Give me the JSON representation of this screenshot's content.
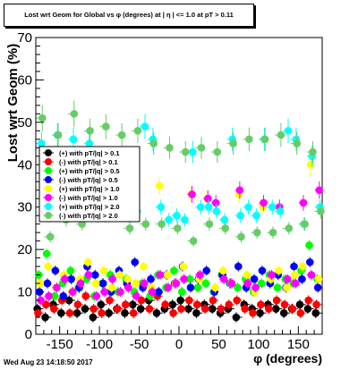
{
  "header": {
    "title": "Lost wrt Geom for Global vs φ (degrees) at | η | <= 1.0 at pT > 0.11"
  },
  "footer": {
    "timestamp": "Wed Aug 23 14:18:50 2017"
  },
  "chart_data": {
    "type": "scatter",
    "title": "Lost wrt Geom for Global vs φ (degrees) at | η | <= 1.0 at pT > 0.11",
    "xlabel": "φ (degrees)",
    "ylabel": "Lost wrt Geom (%)",
    "xlim": [
      -180,
      180
    ],
    "ylim": [
      0,
      70
    ],
    "x_ticks": [
      -150,
      -100,
      -50,
      0,
      50,
      100,
      150
    ],
    "y_ticks": [
      0,
      10,
      20,
      30,
      40,
      50,
      60,
      70
    ],
    "grid": false,
    "legend_position": "top-left",
    "error_bars": true,
    "x": [
      -175,
      -165,
      -155,
      -145,
      -135,
      -125,
      -115,
      -105,
      -95,
      -85,
      -75,
      -65,
      -55,
      -45,
      -35,
      -25,
      -15,
      -5,
      5,
      15,
      25,
      35,
      45,
      55,
      65,
      75,
      85,
      95,
      105,
      115,
      125,
      135,
      145,
      155,
      165,
      175
    ],
    "series": [
      {
        "name": "(+) with pT/|q| > 0.1",
        "color": "#000000",
        "values": [
          6,
          4,
          7,
          5,
          8,
          5,
          6,
          4,
          7,
          5,
          6,
          5,
          7,
          6,
          8,
          5,
          6,
          7,
          8,
          6,
          5,
          7,
          6,
          5,
          6,
          4,
          7,
          6,
          5,
          7,
          6,
          5,
          6,
          7,
          6,
          5
        ]
      },
      {
        "name": "(-) with pT/|q| > 0.1",
        "color": "#ff0000",
        "values": [
          5,
          7,
          6,
          8,
          5,
          7,
          9,
          6,
          5,
          8,
          6,
          7,
          5,
          8,
          6,
          9,
          7,
          5,
          6,
          8,
          7,
          6,
          8,
          6,
          7,
          8,
          6,
          5,
          7,
          6,
          8,
          7,
          6,
          5,
          8,
          7
        ]
      },
      {
        "name": "(+) with pT/|q| > 0.5",
        "color": "#00ff00",
        "values": [
          14,
          19,
          9,
          12,
          15,
          11,
          13,
          9,
          12,
          14,
          10,
          13,
          10,
          12,
          9,
          14,
          11,
          15,
          10,
          13,
          11,
          12,
          10,
          14,
          12,
          11,
          13,
          10,
          12,
          14,
          11,
          13,
          12,
          15,
          21,
          13
        ]
      },
      {
        "name": "(-) with pT/|q| > 0.5",
        "color": "#0000ff",
        "values": [
          10,
          12,
          15,
          9,
          13,
          11,
          16,
          14,
          12,
          10,
          15,
          12,
          17,
          11,
          13,
          10,
          14,
          12,
          16,
          11,
          13,
          15,
          10,
          14,
          12,
          16,
          11,
          13,
          15,
          12,
          14,
          11,
          16,
          13,
          17,
          11
        ]
      },
      {
        "name": "(+) with pT/|q| > 1.0",
        "color": "#ffff00",
        "values": [
          12,
          16,
          11,
          14,
          10,
          13,
          17,
          12,
          15,
          11,
          14,
          13,
          12,
          16,
          11,
          35,
          14,
          12,
          16,
          33,
          13,
          32,
          11,
          15,
          12,
          33,
          14,
          10,
          30,
          13,
          15,
          11,
          14,
          16,
          40,
          13
        ]
      },
      {
        "name": "(-) with pT/|q| > 1.0",
        "color": "#ff00ff",
        "values": [
          8,
          9,
          11,
          13,
          10,
          12,
          14,
          9,
          10,
          13,
          10,
          11,
          9,
          12,
          10,
          14,
          11,
          12,
          13,
          33,
          14,
          32,
          31,
          13,
          12,
          34,
          12,
          11,
          31,
          14,
          30,
          13,
          12,
          31,
          14,
          34
        ]
      },
      {
        "name": "(+) with pT/|q| > 2.0",
        "color": "#00ffff",
        "values": [
          45,
          28,
          47,
          30,
          46,
          27,
          45,
          30,
          28,
          29,
          30,
          28,
          29,
          49,
          46,
          30,
          27,
          28,
          27,
          43,
          30,
          30,
          29,
          27,
          46,
          28,
          30,
          28,
          46,
          30,
          29,
          48,
          46,
          26,
          42,
          30
        ]
      },
      {
        "name": "(-) with pT/|q| > 2.0",
        "color": "#66cc66",
        "values": [
          51,
          23,
          47,
          27,
          52,
          26,
          48,
          28,
          49,
          30,
          47,
          25,
          48,
          26,
          45,
          26,
          44,
          25,
          43,
          22,
          44,
          26,
          43,
          25,
          45,
          23,
          46,
          24,
          46,
          24,
          47,
          25,
          45,
          26,
          43,
          29
        ]
      }
    ]
  }
}
